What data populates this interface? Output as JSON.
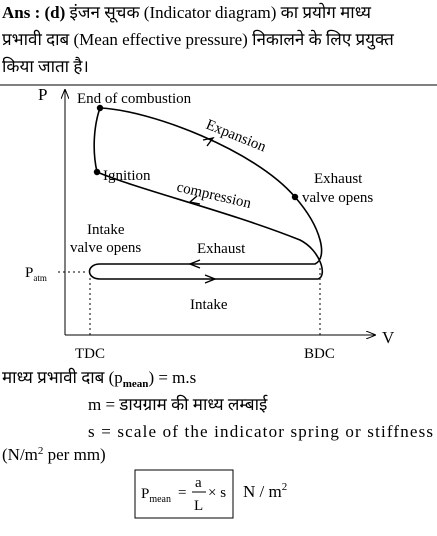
{
  "header": {
    "label": "Ans : (d)",
    "lines": [
      "इंजन सूचक (Indicator diagram) का प्रयोग माध्य",
      "प्रभावी दाब (Mean effective pressure) निकालने के लिए प्रयुक्त",
      "किया जाता है।"
    ]
  },
  "diagram": {
    "y_axis": "P",
    "x_axis": "V",
    "p_atm": {
      "symbol": "P",
      "subscript": "atm"
    },
    "labels": {
      "end_of_combustion": "End of combustion",
      "expansion": "Expansion",
      "ignition": "Ignition",
      "compression": "compression",
      "exhaust_valve_opens": [
        "Exhaust",
        "valve opens"
      ],
      "intake_valve_opens": [
        "Intake",
        "valve opens"
      ],
      "exhaust": "Exhaust",
      "intake": "Intake",
      "tdc": "TDC",
      "bdc": "BDC"
    }
  },
  "explanation": {
    "line1": [
      "माध्य प्रभावी दाब (p",
      "mean",
      ") = m.s"
    ],
    "line2": "m = डायग्राम की माध्य लम्बाई",
    "line3": "s = scale of the indicator spring or stiffness",
    "line4": [
      "(N/m",
      "2",
      " per mm)"
    ]
  },
  "formula": {
    "lhs": "P",
    "lhs_sub": "mean",
    "eq": "=",
    "num": "a",
    "den": "L",
    "times": "× s",
    "unit": "N / m",
    "unit_sup": "2"
  }
}
